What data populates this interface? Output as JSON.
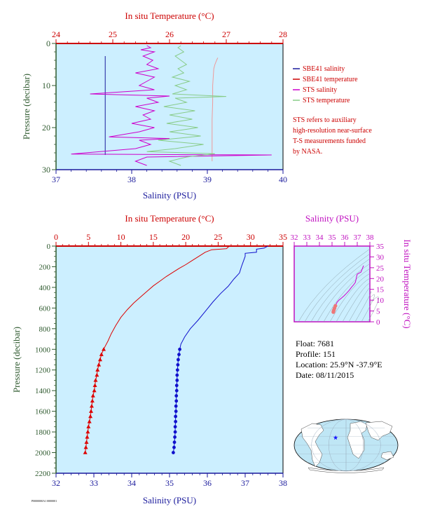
{
  "chart_data": [
    {
      "id": "top",
      "type": "line",
      "title": "",
      "x_top_label": "In situ Temperature (°C)",
      "x_bottom_label": "Salinity (PSU)",
      "ylabel": "Pressure (decibar)",
      "x_top_lim": [
        24,
        28
      ],
      "x_bottom_lim": [
        37,
        40
      ],
      "ylim": [
        0,
        30
      ],
      "y_inverted": true,
      "x_top_ticks": [
        "24",
        "25",
        "26",
        "27",
        "28"
      ],
      "x_bottom_ticks": [
        "37",
        "38",
        "39",
        "40"
      ],
      "y_ticks": [
        "0",
        "10",
        "20",
        "30"
      ],
      "series": [
        {
          "name": "SBE41 salinity",
          "axis": "salinity",
          "color": "#1a1a9c",
          "points": [
            [
              37.65,
              3
            ],
            [
              37.65,
              10
            ],
            [
              37.65,
              20
            ],
            [
              37.65,
              26.5
            ]
          ]
        },
        {
          "name": "SBE41 temperature",
          "axis": "temperature",
          "color": "#ee9a9a",
          "points": [
            [
              26.85,
              3.4
            ],
            [
              26.83,
              4
            ],
            [
              26.8,
              5
            ],
            [
              26.78,
              6
            ],
            [
              26.77,
              8
            ],
            [
              26.76,
              10
            ],
            [
              26.76,
              14
            ],
            [
              26.75,
              18
            ],
            [
              26.75,
              22
            ],
            [
              26.75,
              26
            ],
            [
              26.75,
              28
            ]
          ]
        },
        {
          "name": "STS salinity",
          "axis": "salinity",
          "color": "#cc00cc",
          "points": [
            [
              38.2,
              0.5
            ],
            [
              38.25,
              1
            ],
            [
              38.12,
              1.5
            ],
            [
              38.3,
              2
            ],
            [
              38.15,
              3
            ],
            [
              38.28,
              4
            ],
            [
              38.2,
              5
            ],
            [
              38.35,
              6
            ],
            [
              38.05,
              7
            ],
            [
              38.3,
              8
            ],
            [
              38.2,
              9
            ],
            [
              38.1,
              10
            ],
            [
              38.3,
              11
            ],
            [
              37.45,
              12
            ],
            [
              38.5,
              12.5
            ],
            [
              38.2,
              13
            ],
            [
              38.35,
              14
            ],
            [
              38.05,
              15
            ],
            [
              38.3,
              16
            ],
            [
              38.15,
              17
            ],
            [
              38.25,
              18
            ],
            [
              38.0,
              19
            ],
            [
              38.3,
              20
            ],
            [
              38.1,
              21
            ],
            [
              37.7,
              22.2
            ],
            [
              38.5,
              22.6
            ],
            [
              38.1,
              23
            ],
            [
              38.25,
              24
            ],
            [
              38.05,
              25
            ],
            [
              37.2,
              26.3
            ],
            [
              39.85,
              26.5
            ],
            [
              38.2,
              27
            ],
            [
              38.05,
              28
            ],
            [
              38.2,
              29
            ]
          ]
        },
        {
          "name": "STS temperature",
          "axis": "temperature",
          "color": "#88cc88",
          "points": [
            [
              26.2,
              0.5
            ],
            [
              26.15,
              1
            ],
            [
              26.25,
              2
            ],
            [
              26.1,
              3
            ],
            [
              26.2,
              4
            ],
            [
              26.3,
              5
            ],
            [
              26.15,
              6
            ],
            [
              26.25,
              7
            ],
            [
              26.05,
              8
            ],
            [
              26.35,
              9
            ],
            [
              26.1,
              10
            ],
            [
              26.3,
              11
            ],
            [
              26.05,
              12
            ],
            [
              27.0,
              12.6
            ],
            [
              26.1,
              13
            ],
            [
              26.3,
              14
            ],
            [
              25.9,
              15
            ],
            [
              26.45,
              16
            ],
            [
              26.0,
              17
            ],
            [
              26.4,
              18
            ],
            [
              25.95,
              19
            ],
            [
              26.5,
              20
            ],
            [
              26.0,
              21
            ],
            [
              26.55,
              22
            ],
            [
              25.8,
              23
            ],
            [
              26.6,
              24
            ],
            [
              26.1,
              25
            ],
            [
              25.6,
              25.7
            ],
            [
              26.8,
              26.2
            ],
            [
              26.3,
              27
            ],
            [
              26.0,
              28
            ],
            [
              26.2,
              29
            ]
          ]
        }
      ],
      "legend": [
        "SBE41 salinity",
        "SBE41 temperature",
        "STS salinity",
        "STS temperature"
      ],
      "annotation": [
        "STS refers to auxiliary",
        "high-resolution near-surface",
        "T-S measurements funded",
        "by NASA."
      ]
    },
    {
      "id": "bottom",
      "type": "line",
      "title": "",
      "x_top_label": "In situ Temperature (°C)",
      "x_bottom_label": "Salinity (PSU)",
      "ylabel": "Pressure (decibar)",
      "x_top_lim": [
        0,
        35
      ],
      "x_bottom_lim": [
        32,
        38
      ],
      "ylim": [
        0,
        2200
      ],
      "y_inverted": true,
      "x_top_ticks": [
        "0",
        "5",
        "10",
        "15",
        "20",
        "25",
        "30",
        "35"
      ],
      "x_bottom_ticks": [
        "32",
        "33",
        "34",
        "35",
        "36",
        "37",
        "38"
      ],
      "y_ticks": [
        "0",
        "200",
        "400",
        "600",
        "800",
        "1000",
        "1200",
        "1400",
        "1600",
        "1800",
        "2000",
        "2200"
      ],
      "series": [
        {
          "name": "temperature",
          "axis": "temperature",
          "color": "#dd0000",
          "points": [
            [
              26.8,
              0
            ],
            [
              26.5,
              10
            ],
            [
              26.3,
              25
            ],
            [
              24.0,
              35
            ],
            [
              23.0,
              60
            ],
            [
              22.0,
              100
            ],
            [
              21.0,
              140
            ],
            [
              20.0,
              180
            ],
            [
              19.0,
              215
            ],
            [
              18.0,
              255
            ],
            [
              17.0,
              295
            ],
            [
              16.0,
              340
            ],
            [
              15.0,
              385
            ],
            [
              14.0,
              440
            ],
            [
              13.0,
              495
            ],
            [
              12.0,
              550
            ],
            [
              11.0,
              615
            ],
            [
              10.0,
              690
            ],
            [
              9.2,
              770
            ],
            [
              8.5,
              850
            ],
            [
              8.0,
              920
            ],
            [
              7.5,
              980
            ],
            [
              7.35,
              1000
            ],
            [
              7.0,
              1050
            ],
            [
              6.8,
              1100
            ],
            [
              6.6,
              1150
            ],
            [
              6.4,
              1200
            ],
            [
              6.3,
              1250
            ],
            [
              6.1,
              1300
            ],
            [
              6.0,
              1350
            ],
            [
              5.9,
              1400
            ],
            [
              5.7,
              1450
            ],
            [
              5.6,
              1500
            ],
            [
              5.5,
              1550
            ],
            [
              5.4,
              1600
            ],
            [
              5.3,
              1650
            ],
            [
              5.15,
              1700
            ],
            [
              5.0,
              1750
            ],
            [
              4.9,
              1800
            ],
            [
              4.8,
              1850
            ],
            [
              4.7,
              1900
            ],
            [
              4.6,
              1950
            ],
            [
              4.5,
              2000
            ]
          ]
        },
        {
          "name": "salinity",
          "axis": "salinity",
          "color": "#1010cc",
          "points": [
            [
              37.6,
              0
            ],
            [
              37.5,
              20
            ],
            [
              37.3,
              30
            ],
            [
              37.3,
              60
            ],
            [
              37.0,
              70
            ],
            [
              37.0,
              100
            ],
            [
              36.95,
              150
            ],
            [
              36.9,
              200
            ],
            [
              36.85,
              260
            ],
            [
              36.7,
              320
            ],
            [
              36.55,
              390
            ],
            [
              36.35,
              460
            ],
            [
              36.15,
              540
            ],
            [
              35.95,
              630
            ],
            [
              35.75,
              720
            ],
            [
              35.55,
              800
            ],
            [
              35.4,
              880
            ],
            [
              35.3,
              950
            ],
            [
              35.27,
              1000
            ],
            [
              35.25,
              1050
            ],
            [
              35.23,
              1100
            ],
            [
              35.22,
              1150
            ],
            [
              35.21,
              1200
            ],
            [
              35.2,
              1250
            ],
            [
              35.2,
              1300
            ],
            [
              35.19,
              1350
            ],
            [
              35.19,
              1400
            ],
            [
              35.18,
              1450
            ],
            [
              35.18,
              1500
            ],
            [
              35.17,
              1550
            ],
            [
              35.17,
              1600
            ],
            [
              35.16,
              1650
            ],
            [
              35.16,
              1700
            ],
            [
              35.15,
              1750
            ],
            [
              35.15,
              1800
            ],
            [
              35.14,
              1850
            ],
            [
              35.13,
              1900
            ],
            [
              35.12,
              1950
            ],
            [
              35.1,
              2000
            ]
          ]
        }
      ]
    },
    {
      "id": "ts",
      "type": "line",
      "title": "",
      "x_top_label": "Salinity (PSU)",
      "ylabel": "In situ Temperature (°C)",
      "xlim": [
        32,
        38
      ],
      "ylim": [
        0,
        35
      ],
      "x_ticks": [
        "32",
        "33",
        "34",
        "35",
        "36",
        "37",
        "38"
      ],
      "y_ticks": [
        "0",
        "5",
        "10",
        "15",
        "20",
        "25",
        "30",
        "35"
      ],
      "series": [
        {
          "name": "T-S",
          "color": "#cc00cc",
          "points": [
            [
              35.1,
              4.5
            ],
            [
              35.12,
              5
            ],
            [
              35.15,
              5.5
            ],
            [
              35.2,
              6.3
            ],
            [
              35.27,
              7.4
            ],
            [
              35.4,
              9
            ],
            [
              35.55,
              10
            ],
            [
              35.75,
              11
            ],
            [
              35.95,
              12
            ],
            [
              36.15,
              13.2
            ],
            [
              36.35,
              14.5
            ],
            [
              36.55,
              16
            ],
            [
              36.7,
              17
            ],
            [
              36.85,
              18.2
            ],
            [
              36.9,
              19.5
            ],
            [
              36.95,
              21
            ],
            [
              37.0,
              22
            ],
            [
              37.3,
              23
            ],
            [
              37.5,
              26
            ]
          ]
        }
      ]
    }
  ],
  "info": {
    "float": "Float: 7681",
    "profile": "Profile: 151",
    "location": "Location: 25.9°N -37.9°E",
    "date": "Date: 08/11/2015"
  },
  "map": {
    "marker_lat": 25.9,
    "marker_lon": -37.9,
    "marker_color": "#1a1aff",
    "ocean_color": "#bfe6f5",
    "land_color": "#ffffff"
  },
  "colors": {
    "plot_bg": "#ccefff",
    "temperature": "#cc0000",
    "salinity": "#1a1a9c",
    "pressure": "#2f5a2f",
    "ts": "#c010c0"
  },
  "footer": "P0000000A1 0000001"
}
